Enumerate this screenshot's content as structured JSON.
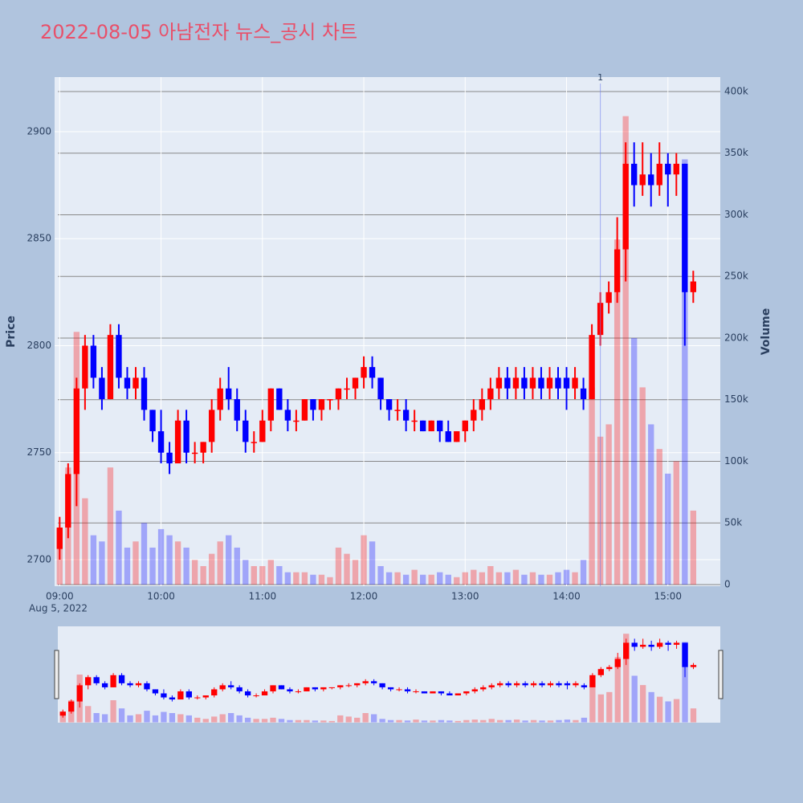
{
  "chart_data": {
    "type": "candlestick",
    "title": "2022-08-05 아남전자 뉴스_공시 차트",
    "y_title": "Price",
    "y2_title": "Volume",
    "x_date_label": "Aug 5, 2022",
    "increasing_color": "#ff0000",
    "decreasing_color": "#0000ff",
    "grid": true,
    "xlim": [
      "08:57",
      "15:31"
    ],
    "xticks": [
      "09:00",
      "10:00",
      "11:00",
      "12:00",
      "13:00",
      "14:00",
      "15:00"
    ],
    "ylim": [
      2687.6,
      2925.5
    ],
    "yticks": [
      2700,
      2750,
      2800,
      2850,
      2900
    ],
    "y2lim": [
      -1300,
      411700
    ],
    "y2ticks": [
      0,
      {
        "value": 50000,
        "label": "50k"
      },
      {
        "value": 100000,
        "label": "100k"
      },
      {
        "value": 150000,
        "label": "150k"
      },
      {
        "value": 200000,
        "label": "200k"
      },
      {
        "value": 250000,
        "label": "250k"
      },
      {
        "value": 300000,
        "label": "300k"
      },
      {
        "value": 350000,
        "label": "350k"
      },
      {
        "value": 400000,
        "label": "400k"
      }
    ],
    "annotations": [
      {
        "x": "14:20",
        "text": "1"
      }
    ],
    "x": [
      "09:00",
      "09:05",
      "09:10",
      "09:15",
      "09:20",
      "09:25",
      "09:30",
      "09:35",
      "09:40",
      "09:45",
      "09:50",
      "09:55",
      "10:00",
      "10:05",
      "10:10",
      "10:15",
      "10:20",
      "10:25",
      "10:30",
      "10:35",
      "10:40",
      "10:45",
      "10:50",
      "10:55",
      "11:00",
      "11:05",
      "11:10",
      "11:15",
      "11:20",
      "11:25",
      "11:30",
      "11:35",
      "11:40",
      "11:45",
      "11:50",
      "11:55",
      "12:00",
      "12:05",
      "12:10",
      "12:15",
      "12:20",
      "12:25",
      "12:30",
      "12:35",
      "12:40",
      "12:45",
      "12:50",
      "12:55",
      "13:00",
      "13:05",
      "13:10",
      "13:15",
      "13:20",
      "13:25",
      "13:30",
      "13:35",
      "13:40",
      "13:45",
      "13:50",
      "13:55",
      "14:00",
      "14:05",
      "14:10",
      "14:15",
      "14:20",
      "14:25",
      "14:30",
      "14:35",
      "14:40",
      "14:45",
      "14:50",
      "14:55",
      "15:00",
      "15:05",
      "15:10",
      "15:15"
    ],
    "open": [
      2705,
      2715,
      2740,
      2780,
      2800,
      2785,
      2775,
      2805,
      2785,
      2780,
      2785,
      2770,
      2760,
      2750,
      2745,
      2765,
      2750,
      2750,
      2755,
      2770,
      2780,
      2775,
      2765,
      2755,
      2755,
      2765,
      2780,
      2770,
      2765,
      2765,
      2775,
      2770,
      2775,
      2775,
      2780,
      2780,
      2785,
      2790,
      2785,
      2775,
      2770,
      2770,
      2765,
      2765,
      2760,
      2765,
      2760,
      2755,
      2760,
      2765,
      2770,
      2775,
      2780,
      2785,
      2780,
      2785,
      2780,
      2785,
      2780,
      2785,
      2785,
      2780,
      2780,
      2775,
      2805,
      2820,
      2825,
      2845,
      2885,
      2875,
      2880,
      2875,
      2885,
      2880,
      2885,
      2825
    ],
    "high": [
      2720,
      2745,
      2785,
      2805,
      2805,
      2790,
      2810,
      2810,
      2790,
      2790,
      2790,
      2770,
      2770,
      2755,
      2770,
      2770,
      2755,
      2755,
      2775,
      2785,
      2790,
      2780,
      2770,
      2760,
      2770,
      2780,
      2780,
      2775,
      2770,
      2775,
      2775,
      2775,
      2775,
      2780,
      2785,
      2785,
      2795,
      2795,
      2785,
      2775,
      2775,
      2775,
      2770,
      2765,
      2765,
      2765,
      2765,
      2760,
      2765,
      2775,
      2780,
      2785,
      2790,
      2790,
      2790,
      2790,
      2790,
      2790,
      2790,
      2790,
      2790,
      2790,
      2785,
      2810,
      2825,
      2830,
      2860,
      2895,
      2895,
      2895,
      2890,
      2895,
      2890,
      2890,
      2885,
      2835
    ],
    "low": [
      2700,
      2710,
      2725,
      2770,
      2780,
      2770,
      2775,
      2780,
      2775,
      2775,
      2765,
      2755,
      2745,
      2740,
      2745,
      2745,
      2745,
      2745,
      2750,
      2765,
      2770,
      2760,
      2750,
      2750,
      2755,
      2760,
      2770,
      2760,
      2760,
      2765,
      2765,
      2765,
      2770,
      2770,
      2775,
      2775,
      2780,
      2780,
      2770,
      2765,
      2765,
      2760,
      2760,
      2760,
      2760,
      2755,
      2755,
      2755,
      2755,
      2760,
      2765,
      2770,
      2775,
      2775,
      2775,
      2775,
      2775,
      2775,
      2775,
      2775,
      2770,
      2775,
      2770,
      2775,
      2800,
      2815,
      2820,
      2830,
      2865,
      2870,
      2865,
      2870,
      2865,
      2870,
      2800,
      2820
    ],
    "close": [
      2715,
      2740,
      2780,
      2800,
      2785,
      2775,
      2805,
      2785,
      2780,
      2785,
      2770,
      2760,
      2750,
      2745,
      2765,
      2750,
      2750,
      2755,
      2770,
      2780,
      2775,
      2765,
      2755,
      2755,
      2765,
      2780,
      2770,
      2765,
      2765,
      2775,
      2770,
      2775,
      2775,
      2780,
      2780,
      2785,
      2790,
      2785,
      2775,
      2770,
      2770,
      2765,
      2765,
      2760,
      2765,
      2760,
      2755,
      2760,
      2765,
      2770,
      2775,
      2780,
      2785,
      2780,
      2785,
      2780,
      2785,
      2780,
      2785,
      2780,
      2780,
      2785,
      2775,
      2805,
      2820,
      2825,
      2845,
      2885,
      2875,
      2880,
      2875,
      2885,
      2880,
      2885,
      2825,
      2830
    ],
    "volume": [
      45000,
      95000,
      205000,
      70000,
      40000,
      35000,
      95000,
      60000,
      30000,
      35000,
      50000,
      30000,
      45000,
      40000,
      35000,
      30000,
      20000,
      15000,
      25000,
      35000,
      40000,
      30000,
      20000,
      15000,
      15000,
      20000,
      15000,
      10000,
      10000,
      10000,
      8000,
      8000,
      6000,
      30000,
      25000,
      20000,
      40000,
      35000,
      15000,
      10000,
      10000,
      8000,
      12000,
      8000,
      8000,
      10000,
      8000,
      6000,
      10000,
      12000,
      10000,
      15000,
      10000,
      10000,
      12000,
      8000,
      10000,
      8000,
      8000,
      10000,
      12000,
      10000,
      20000,
      160000,
      120000,
      130000,
      280000,
      380000,
      200000,
      160000,
      130000,
      110000,
      90000,
      100000,
      345000,
      60000
    ]
  }
}
